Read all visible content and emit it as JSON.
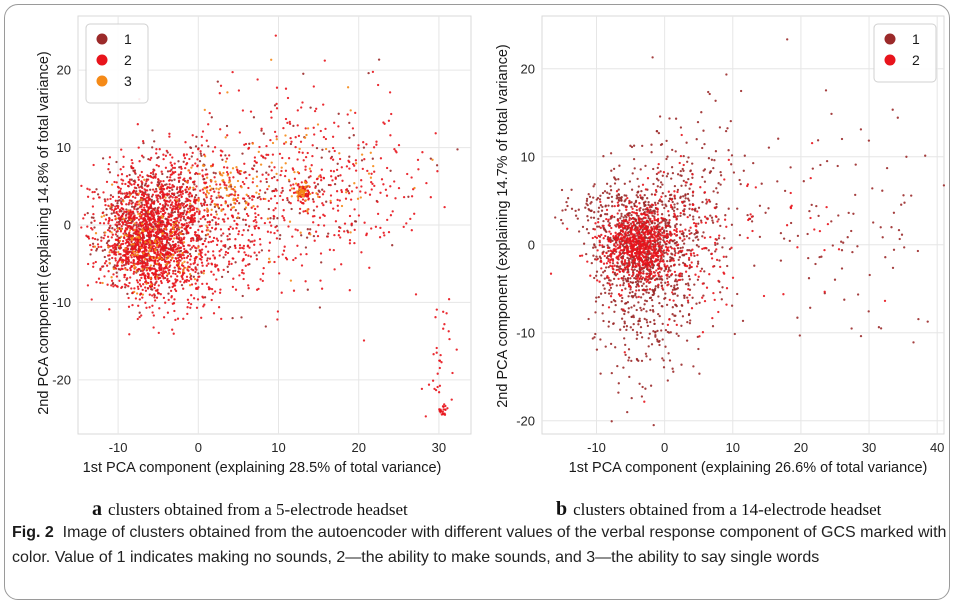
{
  "figure": {
    "caption_label": "Fig. 2",
    "caption_text": "Image of clusters obtained from the autoencoder with different values of the verbal response component of GCS marked with color. Value of 1 indicates making no sounds, 2—the ability to make sounds, and 3—the ability to say single words"
  },
  "chart_data": [
    {
      "type": "scatter",
      "panel_letter": "a",
      "subcaption": "clusters obtained from a 5-electrode headset",
      "xlabel": "1st PCA component (explaining 28.5% of total variance)",
      "ylabel": "2nd PCA component (explaining 14.8% of total variance)",
      "xlim": [
        -15,
        34
      ],
      "ylim": [
        -27,
        27
      ],
      "xticks": [
        -10,
        0,
        10,
        20,
        30
      ],
      "yticks": [
        -20,
        -10,
        0,
        10,
        20
      ],
      "grid": true,
      "legend_position": "top-left",
      "series": [
        {
          "name": "1",
          "color": "#9b2a2a",
          "clusters": [
            {
              "cx": -7,
              "cy": -1,
              "sx": 3.2,
              "sy": 3.5,
              "n": 350
            },
            {
              "cx": -4,
              "cy": 3,
              "sx": 4,
              "sy": 3.5,
              "n": 150
            },
            {
              "cx": 2,
              "cy": 2,
              "sx": 6,
              "sy": 5,
              "n": 120
            },
            {
              "cx": 14,
              "cy": 5,
              "sx": 7,
              "sy": 6,
              "n": 80
            }
          ]
        },
        {
          "name": "2",
          "color": "#e8141c",
          "clusters": [
            {
              "cx": -6,
              "cy": -3,
              "sx": 3,
              "sy": 3.5,
              "n": 1100
            },
            {
              "cx": -5,
              "cy": 3,
              "sx": 4,
              "sy": 3.2,
              "n": 450
            },
            {
              "cx": 0,
              "cy": -1,
              "sx": 5,
              "sy": 5,
              "n": 400
            },
            {
              "cx": 12,
              "cy": 5,
              "sx": 7,
              "sy": 6,
              "n": 380
            },
            {
              "cx": 22,
              "cy": 4,
              "sx": 4,
              "sy": 4,
              "n": 60
            },
            {
              "cx": 13,
              "cy": 4.2,
              "sx": 0.5,
              "sy": 0.6,
              "n": 60
            },
            {
              "cx": 30,
              "cy": -16,
              "sx": 1,
              "sy": 4,
              "n": 30
            },
            {
              "cx": 30.5,
              "cy": -24,
              "sx": 0.3,
              "sy": 0.3,
              "n": 20
            }
          ]
        },
        {
          "name": "3",
          "color": "#f58a17",
          "clusters": [
            {
              "cx": -6,
              "cy": -2,
              "sx": 3,
              "sy": 3,
              "n": 150
            },
            {
              "cx": 3,
              "cy": 5,
              "sx": 2.5,
              "sy": 2,
              "n": 80
            },
            {
              "cx": 12,
              "cy": 6,
              "sx": 6,
              "sy": 5,
              "n": 70
            },
            {
              "cx": 13,
              "cy": 4.2,
              "sx": 0.4,
              "sy": 0.5,
              "n": 30
            }
          ]
        }
      ]
    },
    {
      "type": "scatter",
      "panel_letter": "b",
      "subcaption": "clusters obtained from a 14-electrode headset",
      "xlabel": "1st PCA component (explaining 26.6% of total variance)",
      "ylabel": "2nd PCA component (explaining 14.7% of total variance)",
      "xlim": [
        -18,
        41
      ],
      "ylim": [
        -21.5,
        26
      ],
      "xticks": [
        -10,
        0,
        10,
        20,
        30,
        40
      ],
      "yticks": [
        -20,
        -10,
        0,
        10,
        20
      ],
      "grid": true,
      "legend_position": "top-right",
      "series": [
        {
          "name": "1",
          "color": "#9b2a2a",
          "clusters": [
            {
              "cx": -4,
              "cy": 0,
              "sx": 3,
              "sy": 3,
              "n": 600
            },
            {
              "cx": -2,
              "cy": -6,
              "sx": 4,
              "sy": 5,
              "n": 350
            },
            {
              "cx": 2,
              "cy": 4,
              "sx": 5,
              "sy": 5,
              "n": 350
            },
            {
              "cx": -10,
              "cy": 4,
              "sx": 3,
              "sy": 1.5,
              "n": 80
            },
            {
              "cx": 25,
              "cy": 3,
              "sx": 9,
              "sy": 8,
              "n": 110
            }
          ]
        },
        {
          "name": "2",
          "color": "#e8141c",
          "clusters": [
            {
              "cx": -4,
              "cy": 0,
              "sx": 2.5,
              "sy": 2,
              "n": 600
            },
            {
              "cx": 0,
              "cy": 0,
              "sx": 5,
              "sy": 4,
              "n": 250
            },
            {
              "cx": 15,
              "cy": 1,
              "sx": 9,
              "sy": 7,
              "n": 40
            }
          ]
        }
      ]
    }
  ]
}
